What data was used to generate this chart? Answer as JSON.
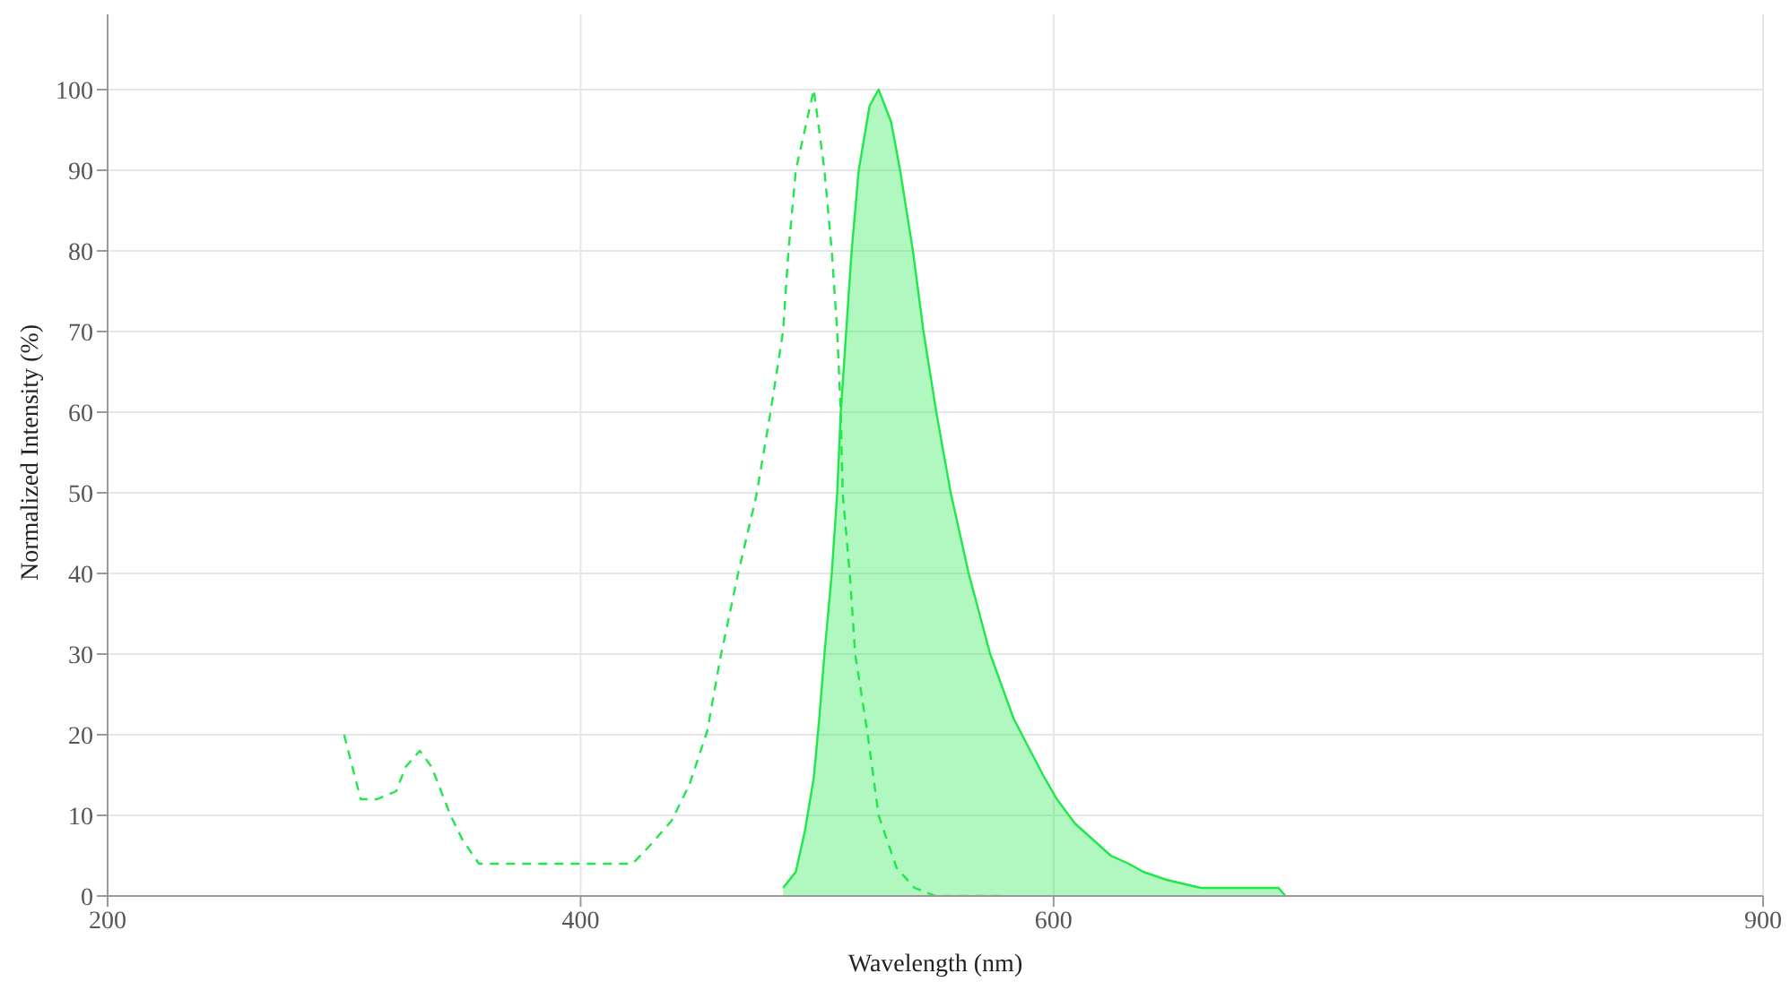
{
  "chart_data": {
    "type": "line",
    "xlabel": "Wavelength (nm)",
    "ylabel": "Normalized Intensity (%)",
    "xlim": [
      200,
      900
    ],
    "xticks": [
      200,
      400,
      600,
      900
    ],
    "ylim": [
      0,
      110
    ],
    "yticks": [
      0,
      10,
      20,
      30,
      40,
      50,
      60,
      70,
      80,
      90,
      100
    ],
    "grid": true,
    "series": [
      {
        "line_style": "dashed",
        "color": "#1ee84a",
        "x": [
          300,
          307,
          314,
          322,
          326,
          332,
          337,
          345,
          350,
          357,
          422,
          428.5,
          438.4,
          446,
          453.6,
          459,
          466.6,
          474.2,
          480.3,
          485.6,
          487.9,
          491,
          498.6,
          503.1,
          506.2,
          508.5,
          510,
          510.8,
          513.8,
          516.1,
          521.4,
          526,
          533.6,
          541.2,
          550,
          580.8
        ],
        "values": [
          20,
          12,
          12,
          13,
          16,
          18,
          16,
          10,
          7,
          4,
          4,
          6,
          9.3,
          13.8,
          20.5,
          29.4,
          40,
          49.5,
          60,
          70,
          80,
          90,
          100,
          90,
          80,
          70,
          60,
          50,
          40,
          30,
          20,
          10,
          3.5,
          1,
          0,
          0
        ]
      },
      {
        "type": "area",
        "line_style": "solid",
        "color": "#1ee84a",
        "x": [
          485.6,
          491,
          494.8,
          498.6,
          500.9,
          503.1,
          506.2,
          508.5,
          510,
          512.3,
          514.6,
          517.6,
          522.2,
          526,
          531.3,
          535.1,
          540.5,
          545,
          550.4,
          556.5,
          564.1,
          573.2,
          583.1,
          588.4,
          596.1,
          601.4,
          609,
          616.6,
          624.2,
          631.8,
          637.9,
          647.8,
          662.3,
          695.1,
          698.1
        ],
        "values": [
          1,
          3,
          8,
          14.7,
          22,
          30,
          40,
          50,
          60,
          70,
          80,
          90,
          98,
          100,
          96,
          90,
          80,
          70,
          60,
          50,
          40,
          30,
          22,
          19,
          14.7,
          12,
          9,
          7,
          5,
          4,
          3,
          2,
          1,
          1,
          0
        ]
      }
    ]
  }
}
